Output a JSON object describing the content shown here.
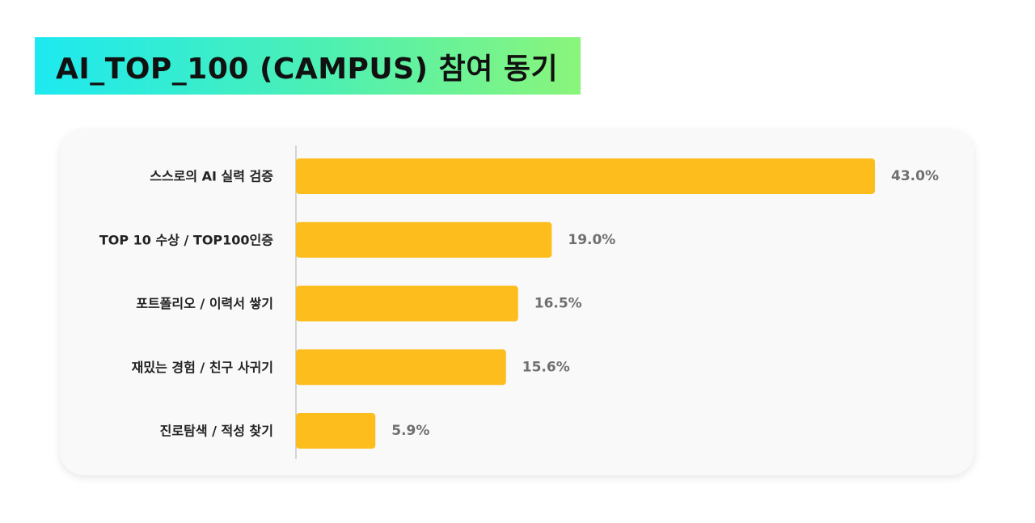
{
  "header": {
    "title": "AI_TOP_100 (CAMPUS) 참여 동기"
  },
  "colors": {
    "bar": "#fdbd1c",
    "axis": "#bbbbbb",
    "label": "#222222",
    "value_label": "#6f6f6f"
  },
  "chart_data": {
    "type": "bar",
    "orientation": "horizontal",
    "categories": [
      "스스로의 AI 실력 검증",
      "TOP 10 수상 / TOP100인증",
      "포트폴리오 / 이력서 쌓기",
      "재밌는 경험 / 친구 사귀기",
      "진로탐색 / 적성 찾기"
    ],
    "values": [
      43.0,
      19.0,
      16.5,
      15.6,
      5.9
    ],
    "value_labels": [
      "43.0%",
      "19.0%",
      "16.5%",
      "15.6%",
      "5.9%"
    ],
    "xlim": [
      0,
      43.0
    ],
    "grid": false,
    "legend": "none"
  }
}
